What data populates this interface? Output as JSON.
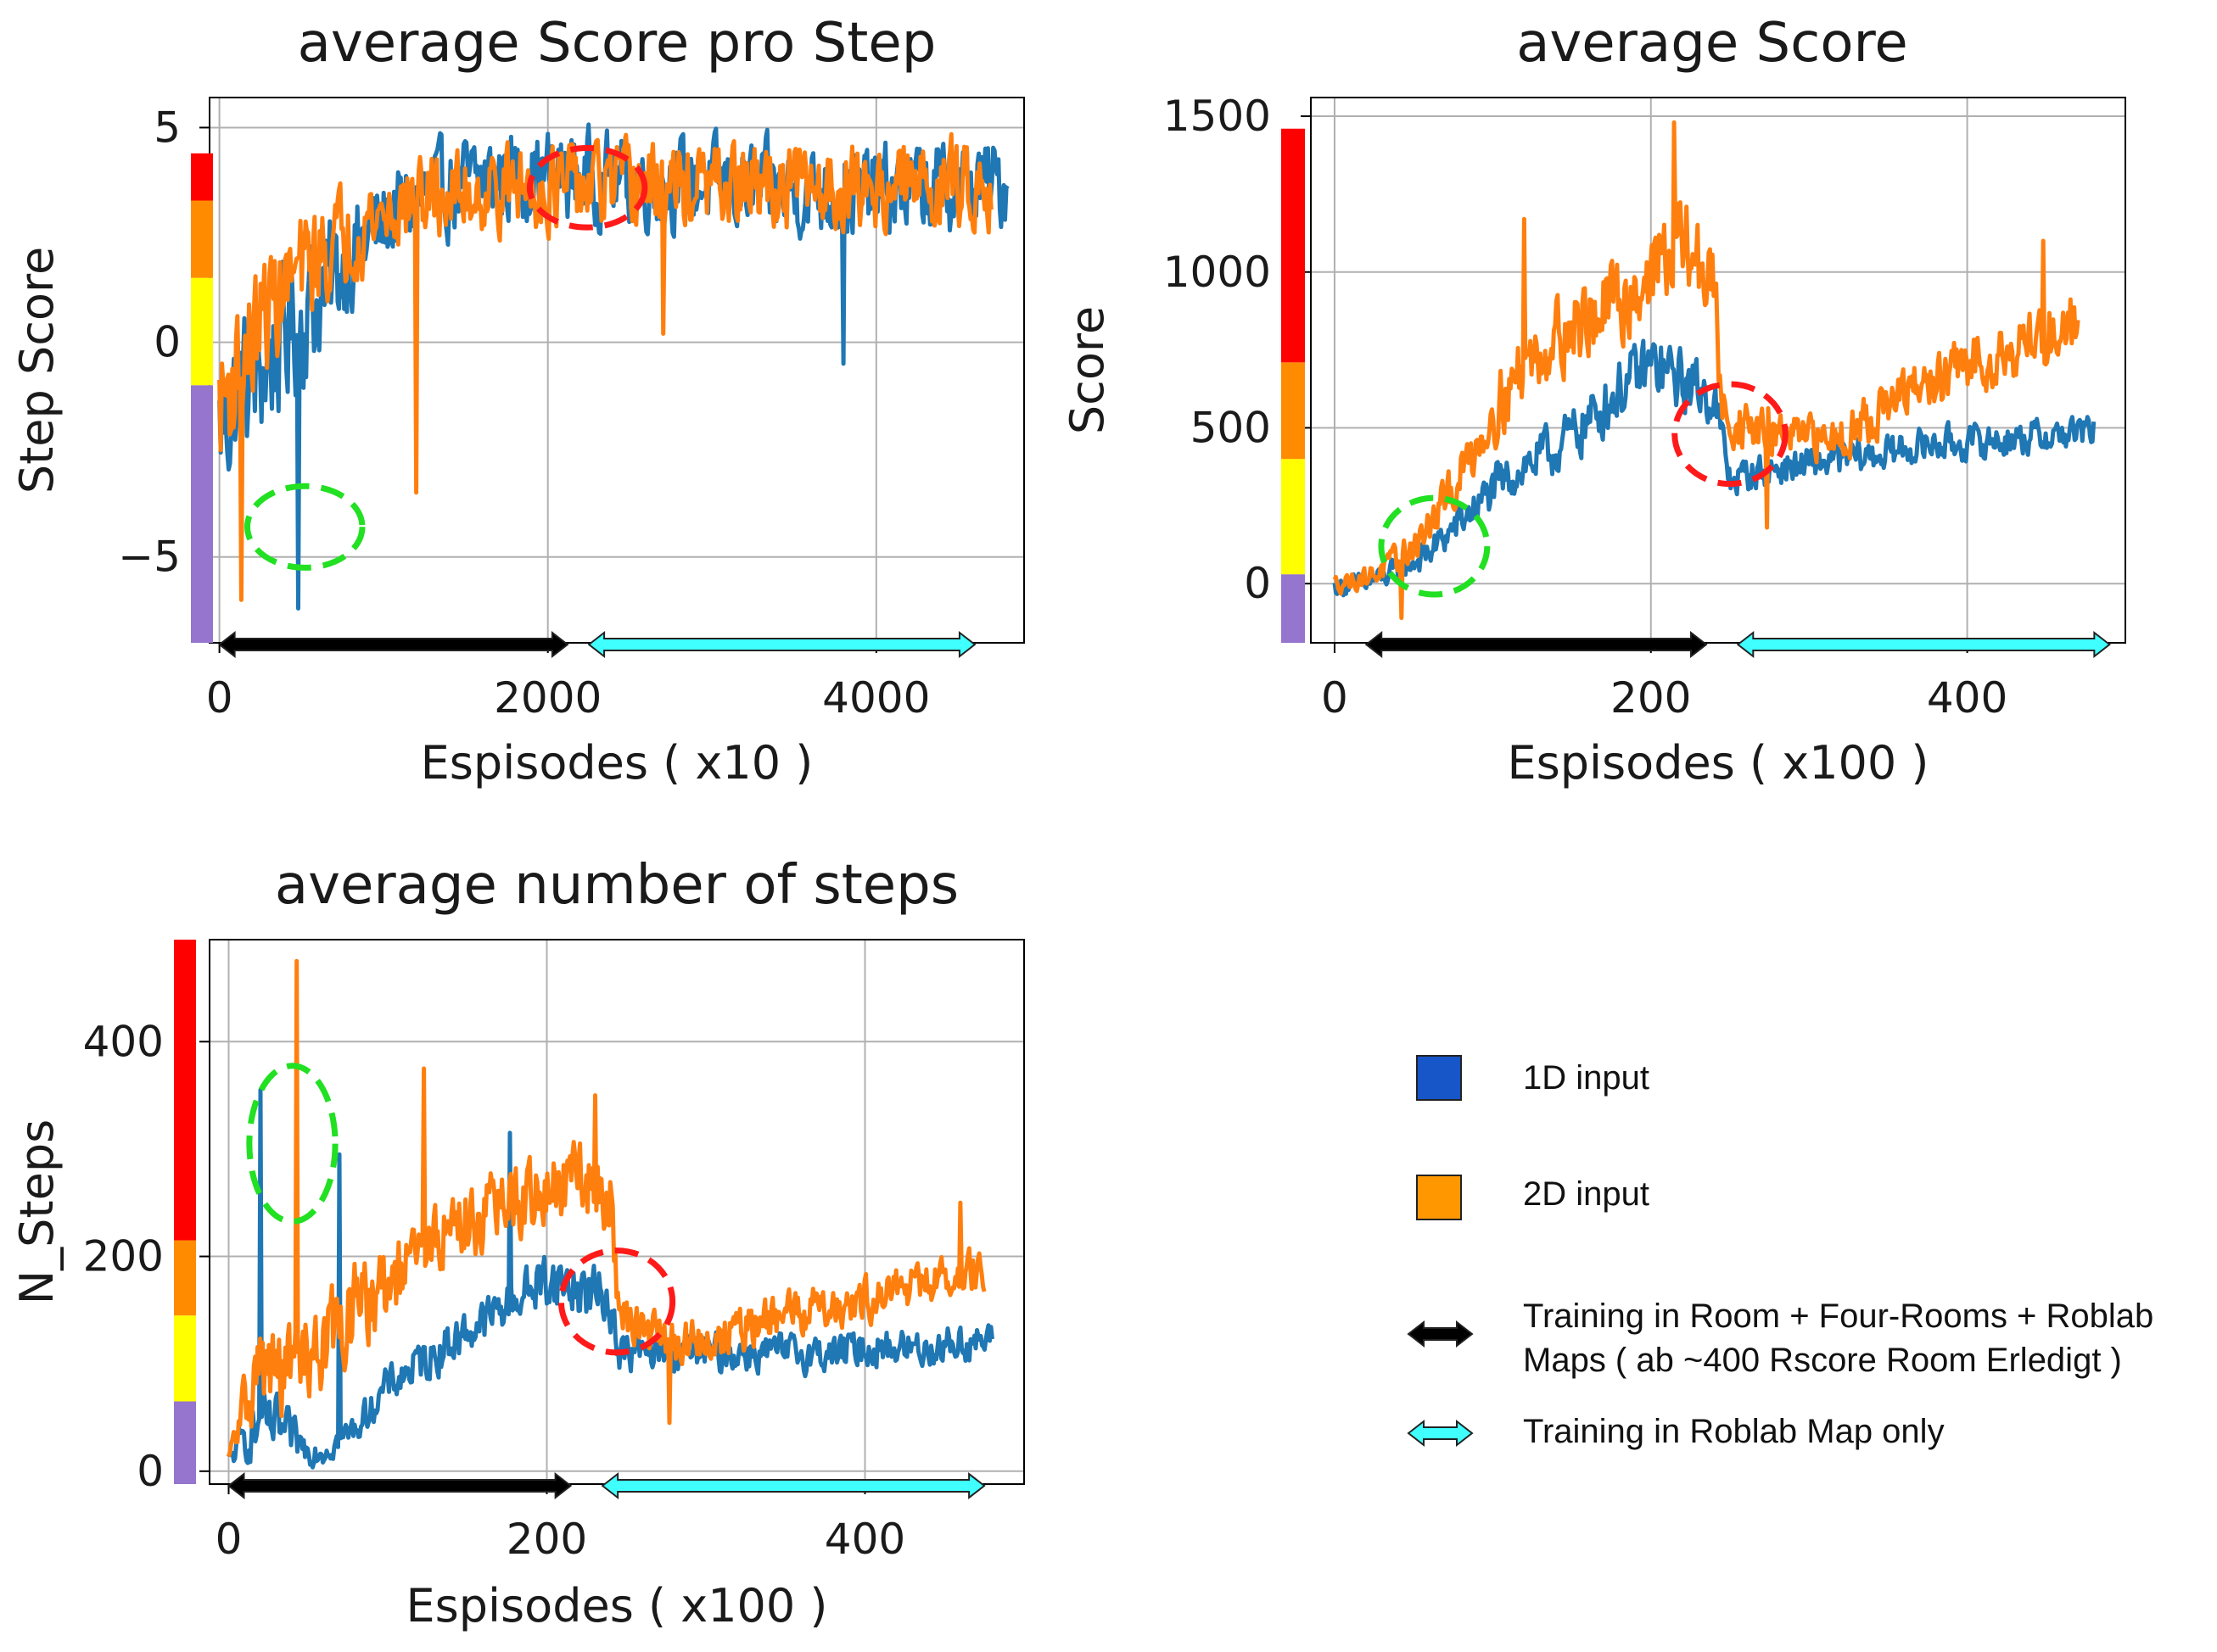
{
  "colors": {
    "series_1d": "#1f77b4",
    "series_2d": "#ff7f0e",
    "grid": "#b0b0b0",
    "band_red": "#ff0000",
    "band_orange": "#ff8c00",
    "band_yellow": "#ffff00",
    "band_purple": "#9575cd",
    "green_circle": "#22e022",
    "red_circle": "#ff1a1a",
    "arrow_black": "#000000",
    "arrow_cyan": "#40ffff",
    "legend_1d": "#1656c8",
    "legend_2d": "#ff9800"
  },
  "chart_data": [
    {
      "id": "step_score",
      "type": "line",
      "title": "average Score pro Step",
      "xlabel": "Espisodes ( x10 )",
      "ylabel": "Step Score",
      "xlim": [
        -60,
        4900
      ],
      "ylim": [
        -7,
        5.7
      ],
      "xticks": [
        0,
        2000,
        4000
      ],
      "yticks": [
        -5,
        0,
        5
      ],
      "ytick_labels": [
        "−5",
        "0",
        "5"
      ],
      "grid": true,
      "series": [
        {
          "name": "1D input",
          "x": [
            0,
            150,
            300,
            450,
            600,
            800,
            1000,
            1200,
            1500,
            1800,
            2100,
            2400,
            2800,
            3200,
            3600,
            4000,
            4400,
            4800
          ],
          "values": [
            -2.0,
            -1.0,
            -0.5,
            0.5,
            1.0,
            2.0,
            2.8,
            3.3,
            3.7,
            3.9,
            3.9,
            3.8,
            3.7,
            3.6,
            3.5,
            3.5,
            3.6,
            3.7
          ],
          "spread": [
            2.5,
            2.5,
            2.5,
            2.5,
            2.3,
            1.8,
            1.6,
            1.5,
            1.5,
            1.5,
            1.5,
            1.5,
            1.5,
            1.5,
            1.5,
            1.5,
            1.5,
            1.5
          ]
        },
        {
          "name": "2D input",
          "x": [
            0,
            150,
            300,
            450,
            600,
            800,
            1000,
            1200,
            1500,
            1800,
            2100,
            2400,
            2800,
            3200,
            3600,
            4000,
            4400,
            4700
          ],
          "values": [
            -1.5,
            -0.3,
            0.8,
            1.5,
            2.0,
            2.6,
            3.0,
            3.3,
            3.5,
            3.6,
            3.6,
            3.6,
            3.6,
            3.6,
            3.6,
            3.6,
            3.7,
            3.7
          ],
          "spread": [
            2.3,
            2.2,
            2.0,
            1.9,
            1.8,
            1.6,
            1.5,
            1.4,
            1.4,
            1.4,
            1.4,
            1.4,
            1.4,
            1.4,
            1.4,
            1.4,
            1.4,
            1.4
          ]
        }
      ],
      "spikes": [
        {
          "series": 0,
          "x": 480,
          "value": -6.2
        },
        {
          "series": 1,
          "x": 130,
          "value": -6.0
        },
        {
          "series": 1,
          "x": 1200,
          "value": -3.5
        },
        {
          "series": 0,
          "x": 3800,
          "value": -0.5
        },
        {
          "series": 1,
          "x": 2700,
          "value": 0.2
        }
      ],
      "annotations": {
        "color_bands": [
          {
            "color": "purple",
            "from": -7,
            "to": -1
          },
          {
            "color": "yellow",
            "from": -1,
            "to": 1.5
          },
          {
            "color": "orange",
            "from": 1.5,
            "to": 3.3
          },
          {
            "color": "red",
            "from": 3.3,
            "to": 4.4
          }
        ],
        "circles": [
          {
            "color": "green",
            "cx": 520,
            "cy": -4.3,
            "rx": 700,
            "ry": 1.9
          },
          {
            "color": "red",
            "cx": 2240,
            "cy": 3.6,
            "rx": 700,
            "ry": 1.85
          }
        ],
        "arrows": [
          {
            "color": "black",
            "from": 0,
            "to": 2120
          },
          {
            "color": "cyan",
            "from": 2250,
            "to": 4600
          }
        ]
      }
    },
    {
      "id": "score",
      "type": "line",
      "title": "average Score",
      "xlabel": "Espisodes ( x100 )",
      "ylabel": "Score",
      "xlim": [
        -15,
        500
      ],
      "ylim": [
        -190,
        1560
      ],
      "xticks": [
        0,
        200,
        400
      ],
      "yticks": [
        0,
        500,
        1000,
        1500
      ],
      "ytick_labels": [
        "0",
        "500",
        "1000",
        "1500"
      ],
      "grid": true,
      "series": [
        {
          "name": "1D input",
          "x": [
            0,
            20,
            40,
            60,
            80,
            100,
            120,
            140,
            160,
            180,
            200,
            220,
            240,
            250,
            260,
            280,
            300,
            320,
            340,
            360,
            380,
            400,
            420,
            440,
            460,
            480
          ],
          "values": [
            -10,
            0,
            40,
            100,
            200,
            300,
            380,
            430,
            520,
            620,
            700,
            650,
            600,
            330,
            350,
            370,
            380,
            400,
            410,
            430,
            450,
            450,
            460,
            470,
            480,
            490
          ],
          "spread": [
            40,
            50,
            60,
            70,
            90,
            100,
            110,
            120,
            130,
            140,
            150,
            140,
            130,
            80,
            80,
            80,
            80,
            80,
            80,
            80,
            80,
            80,
            80,
            80,
            80,
            80
          ]
        },
        {
          "name": "2D input",
          "x": [
            0,
            20,
            40,
            60,
            80,
            100,
            120,
            140,
            160,
            180,
            200,
            220,
            240,
            245,
            260,
            280,
            300,
            320,
            340,
            360,
            380,
            400,
            420,
            440,
            460,
            470
          ],
          "values": [
            0,
            20,
            70,
            180,
            350,
            550,
            700,
            800,
            850,
            900,
            1000,
            1100,
            950,
            550,
            500,
            480,
            460,
            480,
            540,
            600,
            650,
            700,
            740,
            780,
            820,
            840
          ],
          "spread": [
            40,
            50,
            70,
            90,
            120,
            150,
            170,
            180,
            190,
            200,
            220,
            220,
            200,
            120,
            110,
            100,
            100,
            110,
            120,
            120,
            130,
            130,
            140,
            150,
            160,
            160
          ]
        }
      ],
      "spikes": [
        {
          "series": 1,
          "x": 215,
          "value": 1480
        },
        {
          "series": 1,
          "x": 120,
          "value": 1170
        },
        {
          "series": 1,
          "x": 42,
          "value": -110
        },
        {
          "series": 1,
          "x": 273,
          "value": 180
        },
        {
          "series": 1,
          "x": 448,
          "value": 1100
        }
      ],
      "annotations": {
        "color_bands": [
          {
            "color": "purple",
            "from": -190,
            "to": 30
          },
          {
            "color": "yellow",
            "from": 30,
            "to": 400
          },
          {
            "color": "orange",
            "from": 400,
            "to": 710
          },
          {
            "color": "red",
            "from": 710,
            "to": 1460
          }
        ],
        "circles": [
          {
            "color": "green",
            "cx": 63,
            "cy": 120,
            "rx": 67,
            "ry": 310
          },
          {
            "color": "red",
            "cx": 250,
            "cy": 480,
            "rx": 70,
            "ry": 320
          }
        ],
        "arrows": [
          {
            "color": "black",
            "from": 20,
            "to": 235
          },
          {
            "color": "cyan",
            "from": 255,
            "to": 490
          }
        ]
      }
    },
    {
      "id": "n_steps",
      "type": "line",
      "title": "average number of steps",
      "xlabel": "Espisodes ( x100 )",
      "ylabel": "N_Steps",
      "xlim": [
        -12,
        500
      ],
      "ylim": [
        -12,
        495
      ],
      "xticks": [
        0,
        200,
        400
      ],
      "yticks": [
        0,
        200,
        400
      ],
      "ytick_labels": [
        "0",
        "200",
        "400"
      ],
      "grid": true,
      "series": [
        {
          "name": "1D input",
          "x": [
            0,
            10,
            20,
            30,
            40,
            50,
            60,
            80,
            100,
            120,
            140,
            160,
            180,
            200,
            220,
            240,
            245,
            260,
            280,
            300,
            320,
            340,
            360,
            380,
            400,
            420,
            440,
            460,
            480
          ],
          "values": [
            10,
            30,
            40,
            40,
            30,
            20,
            20,
            40,
            80,
            100,
            120,
            140,
            160,
            180,
            170,
            160,
            110,
            110,
            110,
            110,
            110,
            110,
            110,
            110,
            115,
            115,
            115,
            120,
            120
          ],
          "spread": [
            10,
            30,
            40,
            40,
            30,
            20,
            20,
            20,
            25,
            30,
            30,
            30,
            30,
            40,
            40,
            40,
            25,
            25,
            25,
            25,
            25,
            25,
            25,
            25,
            25,
            25,
            25,
            25,
            25
          ]
        },
        {
          "name": "2D input",
          "x": [
            0,
            10,
            20,
            30,
            40,
            50,
            60,
            80,
            100,
            120,
            140,
            160,
            180,
            200,
            220,
            240,
            245,
            260,
            280,
            300,
            320,
            340,
            360,
            380,
            400,
            420,
            440,
            460,
            475
          ],
          "values": [
            10,
            60,
            100,
            90,
            100,
            110,
            120,
            150,
            170,
            200,
            230,
            240,
            250,
            260,
            270,
            260,
            150,
            130,
            120,
            120,
            130,
            140,
            150,
            155,
            160,
            170,
            175,
            180,
            190
          ],
          "spread": [
            10,
            50,
            60,
            60,
            60,
            60,
            60,
            60,
            50,
            50,
            50,
            50,
            50,
            50,
            50,
            50,
            30,
            30,
            30,
            30,
            30,
            30,
            30,
            30,
            30,
            30,
            30,
            30,
            30
          ]
        }
      ],
      "spikes": [
        {
          "series": 1,
          "x": 43,
          "value": 475
        },
        {
          "series": 0,
          "x": 20,
          "value": 355
        },
        {
          "series": 1,
          "x": 123,
          "value": 375
        },
        {
          "series": 1,
          "x": 230,
          "value": 350
        },
        {
          "series": 0,
          "x": 177,
          "value": 315
        },
        {
          "series": 0,
          "x": 70,
          "value": 295
        },
        {
          "series": 1,
          "x": 460,
          "value": 250
        },
        {
          "series": 1,
          "x": 277,
          "value": 45
        }
      ],
      "annotations": {
        "color_bands": [
          {
            "color": "purple",
            "from": -12,
            "to": 65
          },
          {
            "color": "yellow",
            "from": 65,
            "to": 145
          },
          {
            "color": "orange",
            "from": 145,
            "to": 215
          },
          {
            "color": "red",
            "from": 215,
            "to": 495
          }
        ],
        "circles": [
          {
            "color": "green",
            "cx": 40,
            "cy": 305,
            "rx": 54,
            "ry": 145
          },
          {
            "color": "red",
            "cx": 244,
            "cy": 158,
            "rx": 70,
            "ry": 95
          }
        ],
        "arrows": [
          {
            "color": "black",
            "from": 0,
            "to": 215
          },
          {
            "color": "cyan",
            "from": 235,
            "to": 475
          }
        ]
      }
    }
  ],
  "legend": {
    "items": [
      {
        "swatch": "legend_1d",
        "label": "1D input"
      },
      {
        "swatch": "legend_2d",
        "label": "2D input"
      }
    ],
    "arrows": [
      {
        "color": "arrow_black",
        "lines": [
          "Training in Room + Four-Rooms + Roblab",
          "Maps ( ab ~400 Rscore Room Erledigt )"
        ]
      },
      {
        "color": "arrow_cyan",
        "lines": [
          "Training in Roblab Map only"
        ]
      }
    ]
  }
}
